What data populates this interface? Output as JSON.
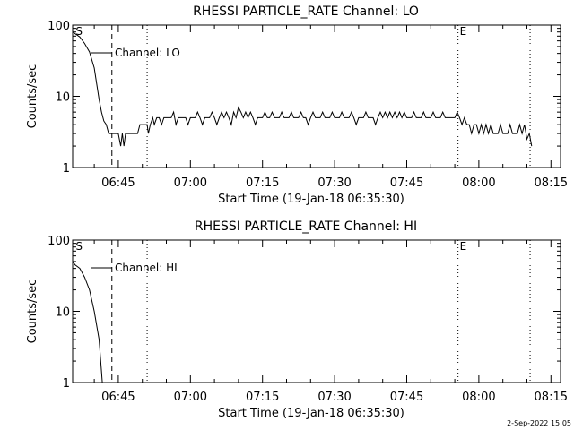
{
  "chart_data": [
    {
      "type": "line",
      "title": "RHESSI PARTICLE_RATE Channel: LO",
      "xlabel": "Start Time (19-Jan-18 06:35:30)",
      "ylabel": "Counts/sec",
      "y_scale": "log",
      "ylim": [
        1,
        100
      ],
      "y_ticks": [
        {
          "value": 1,
          "label": "1"
        },
        {
          "value": 10,
          "label": "10"
        },
        {
          "value": 100,
          "label": "100"
        }
      ],
      "xlim": [
        "06:35:30",
        "08:17:00"
      ],
      "x_ticks": [
        "06:45",
        "07:00",
        "07:15",
        "07:30",
        "07:45",
        "08:00",
        "08:15"
      ],
      "legend": {
        "label": "Channel: LO",
        "placement": "top-left"
      },
      "markers": [
        {
          "label": "S",
          "time": "06:35:45",
          "style": "none"
        },
        {
          "label": "",
          "time": "06:43:40",
          "style": "dashed"
        },
        {
          "label": "",
          "time": "06:51:00",
          "style": "dotted"
        },
        {
          "label": "E",
          "time": "07:55:40",
          "style": "dotted"
        },
        {
          "label": "",
          "time": "08:10:40",
          "style": "dotted"
        }
      ],
      "series": [
        {
          "name": "Channel: LO",
          "points": [
            [
              "06:35:30",
              80
            ],
            [
              "06:37:00",
              68
            ],
            [
              "06:38:00",
              55
            ],
            [
              "06:39:00",
              42
            ],
            [
              "06:40:00",
              25
            ],
            [
              "06:40:30",
              15
            ],
            [
              "06:41:00",
              9
            ],
            [
              "06:41:30",
              6
            ],
            [
              "06:42:00",
              4.5
            ],
            [
              "06:42:30",
              4
            ],
            [
              "06:43:00",
              3
            ],
            [
              "06:44:00",
              3
            ],
            [
              "06:45:00",
              3
            ],
            [
              "06:45:30",
              2
            ],
            [
              "06:45:50",
              3
            ],
            [
              "06:46:10",
              2
            ],
            [
              "06:46:30",
              3
            ],
            [
              "06:47:00",
              3
            ],
            [
              "06:48:00",
              3
            ],
            [
              "06:49:00",
              3
            ],
            [
              "06:49:30",
              4
            ],
            [
              "06:51:00",
              4
            ],
            [
              "06:51:15",
              3
            ],
            [
              "06:51:40",
              4
            ],
            [
              "06:52:10",
              5
            ],
            [
              "06:52:30",
              4
            ],
            [
              "06:53:00",
              5
            ],
            [
              "06:53:30",
              5
            ],
            [
              "06:54:00",
              4
            ],
            [
              "06:54:30",
              5
            ],
            [
              "06:56:00",
              5
            ],
            [
              "06:56:30",
              6
            ],
            [
              "06:57:00",
              4
            ],
            [
              "06:57:30",
              5
            ],
            [
              "06:59:00",
              5
            ],
            [
              "06:59:30",
              4
            ],
            [
              "07:00:00",
              5
            ],
            [
              "07:01:00",
              5
            ],
            [
              "07:01:30",
              6
            ],
            [
              "07:02:00",
              5
            ],
            [
              "07:02:30",
              4
            ],
            [
              "07:03:00",
              5
            ],
            [
              "07:04:00",
              5
            ],
            [
              "07:04:30",
              6
            ],
            [
              "07:05:00",
              5
            ],
            [
              "07:05:30",
              4
            ],
            [
              "07:06:00",
              5
            ],
            [
              "07:06:30",
              6
            ],
            [
              "07:07:00",
              5
            ],
            [
              "07:07:30",
              6
            ],
            [
              "07:08:00",
              5
            ],
            [
              "07:08:30",
              4
            ],
            [
              "07:09:00",
              6
            ],
            [
              "07:09:30",
              5
            ],
            [
              "07:10:00",
              7
            ],
            [
              "07:10:30",
              6
            ],
            [
              "07:11:00",
              5
            ],
            [
              "07:11:30",
              6
            ],
            [
              "07:12:00",
              5
            ],
            [
              "07:12:30",
              6
            ],
            [
              "07:13:00",
              5
            ],
            [
              "07:13:30",
              4
            ],
            [
              "07:14:00",
              5
            ],
            [
              "07:15:00",
              5
            ],
            [
              "07:15:30",
              6
            ],
            [
              "07:16:00",
              5
            ],
            [
              "07:16:30",
              5
            ],
            [
              "07:17:00",
              6
            ],
            [
              "07:17:30",
              5
            ],
            [
              "07:18:30",
              5
            ],
            [
              "07:19:00",
              6
            ],
            [
              "07:19:30",
              5
            ],
            [
              "07:20:30",
              5
            ],
            [
              "07:21:00",
              6
            ],
            [
              "07:21:30",
              5
            ],
            [
              "07:22:30",
              5
            ],
            [
              "07:23:00",
              6
            ],
            [
              "07:23:30",
              5
            ],
            [
              "07:24:00",
              5
            ],
            [
              "07:24:30",
              4
            ],
            [
              "07:25:00",
              5
            ],
            [
              "07:25:30",
              6
            ],
            [
              "07:26:00",
              5
            ],
            [
              "07:27:00",
              5
            ],
            [
              "07:27:30",
              6
            ],
            [
              "07:28:00",
              5
            ],
            [
              "07:29:00",
              5
            ],
            [
              "07:29:30",
              6
            ],
            [
              "07:30:00",
              5
            ],
            [
              "07:31:00",
              5
            ],
            [
              "07:31:30",
              6
            ],
            [
              "07:32:00",
              5
            ],
            [
              "07:33:00",
              5
            ],
            [
              "07:33:30",
              6
            ],
            [
              "07:34:00",
              5
            ],
            [
              "07:34:30",
              4
            ],
            [
              "07:35:00",
              5
            ],
            [
              "07:36:00",
              5
            ],
            [
              "07:36:30",
              6
            ],
            [
              "07:37:00",
              5
            ],
            [
              "07:38:00",
              5
            ],
            [
              "07:38:30",
              4
            ],
            [
              "07:39:00",
              5
            ],
            [
              "07:39:30",
              6
            ],
            [
              "07:40:00",
              5
            ],
            [
              "07:40:30",
              6
            ],
            [
              "07:41:00",
              5
            ],
            [
              "07:41:30",
              6
            ],
            [
              "07:42:00",
              5
            ],
            [
              "07:42:30",
              6
            ],
            [
              "07:43:00",
              5
            ],
            [
              "07:43:30",
              6
            ],
            [
              "07:44:00",
              5
            ],
            [
              "07:44:30",
              6
            ],
            [
              "07:45:00",
              5
            ],
            [
              "07:46:00",
              5
            ],
            [
              "07:46:30",
              6
            ],
            [
              "07:47:00",
              5
            ],
            [
              "07:48:00",
              5
            ],
            [
              "07:48:30",
              6
            ],
            [
              "07:49:00",
              5
            ],
            [
              "07:50:00",
              5
            ],
            [
              "07:50:30",
              6
            ],
            [
              "07:51:00",
              5
            ],
            [
              "07:52:00",
              5
            ],
            [
              "07:52:30",
              6
            ],
            [
              "07:53:00",
              5
            ],
            [
              "07:54:00",
              5
            ],
            [
              "07:55:00",
              5
            ],
            [
              "07:55:30",
              6
            ],
            [
              "07:56:00",
              5
            ],
            [
              "07:56:30",
              4
            ],
            [
              "07:57:00",
              5
            ],
            [
              "07:57:30",
              4
            ],
            [
              "07:58:00",
              4
            ],
            [
              "07:58:30",
              3
            ],
            [
              "07:59:00",
              4
            ],
            [
              "07:59:30",
              4
            ],
            [
              "08:00:00",
              3
            ],
            [
              "08:00:30",
              4
            ],
            [
              "08:01:00",
              3
            ],
            [
              "08:01:30",
              4
            ],
            [
              "08:02:00",
              3
            ],
            [
              "08:02:30",
              4
            ],
            [
              "08:03:00",
              3
            ],
            [
              "08:04:00",
              3
            ],
            [
              "08:04:30",
              4
            ],
            [
              "08:05:00",
              3
            ],
            [
              "08:06:00",
              3
            ],
            [
              "08:06:30",
              4
            ],
            [
              "08:07:00",
              3
            ],
            [
              "08:08:00",
              3
            ],
            [
              "08:08:30",
              4
            ],
            [
              "08:09:00",
              3
            ],
            [
              "08:09:30",
              4
            ],
            [
              "08:10:00",
              2.5
            ],
            [
              "08:10:30",
              3
            ],
            [
              "08:11:00",
              2
            ]
          ]
        }
      ]
    },
    {
      "type": "line",
      "title": "RHESSI PARTICLE_RATE Channel: HI",
      "xlabel": "Start Time (19-Jan-18 06:35:30)",
      "ylabel": "Counts/sec",
      "y_scale": "log",
      "ylim": [
        1,
        100
      ],
      "y_ticks": [
        {
          "value": 1,
          "label": "1"
        },
        {
          "value": 10,
          "label": "10"
        },
        {
          "value": 100,
          "label": "100"
        }
      ],
      "xlim": [
        "06:35:30",
        "08:17:00"
      ],
      "x_ticks": [
        "06:45",
        "07:00",
        "07:15",
        "07:30",
        "07:45",
        "08:00",
        "08:15"
      ],
      "legend": {
        "label": "Channel: HI",
        "placement": "top-left"
      },
      "markers": [
        {
          "label": "S",
          "time": "06:35:45",
          "style": "none"
        },
        {
          "label": "",
          "time": "06:43:40",
          "style": "dashed"
        },
        {
          "label": "",
          "time": "06:51:00",
          "style": "dotted"
        },
        {
          "label": "E",
          "time": "07:55:40",
          "style": "dotted"
        },
        {
          "label": "",
          "time": "08:10:40",
          "style": "dotted"
        }
      ],
      "series": [
        {
          "name": "Channel: HI",
          "points": [
            [
              "06:35:30",
              50
            ],
            [
              "06:36:00",
              45
            ],
            [
              "06:37:00",
              40
            ],
            [
              "06:38:00",
              30
            ],
            [
              "06:39:00",
              20
            ],
            [
              "06:40:00",
              10
            ],
            [
              "06:41:00",
              4
            ],
            [
              "06:41:40",
              1
            ]
          ]
        }
      ]
    }
  ],
  "footer": {
    "timestamp": "2-Sep-2022 15:05"
  }
}
